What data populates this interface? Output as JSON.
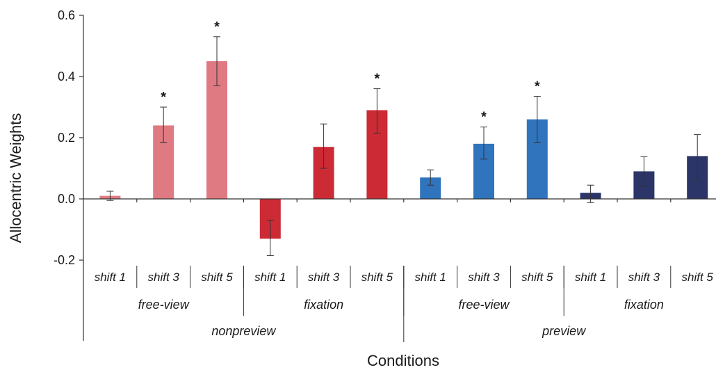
{
  "chart_data": {
    "type": "bar",
    "ylabel": "Allocentric Weights",
    "xlabel": "Conditions",
    "ylim": [
      -0.2,
      0.6
    ],
    "yticks": [
      0.6,
      0.4,
      0.2,
      0.0,
      -0.2
    ],
    "ytick_labels": [
      "0.6",
      "0.4",
      "0.2",
      "0.0",
      "-0.2"
    ],
    "grid": false,
    "legend": "none",
    "colors": {
      "nonpreview_free_view": "#e07a82",
      "nonpreview_fixation": "#cc2b35",
      "preview_free_view": "#2f74bd",
      "preview_fixation": "#2b3568"
    },
    "categories": [
      "shift 1",
      "shift 3",
      "shift 5",
      "shift 1",
      "shift 3",
      "shift 5",
      "shift 1",
      "shift 3",
      "shift 5",
      "shift 1",
      "shift 3",
      "shift 5"
    ],
    "values": [
      0.01,
      0.24,
      0.45,
      -0.13,
      0.17,
      0.29,
      0.07,
      0.18,
      0.26,
      0.02,
      0.09,
      0.14
    ],
    "error_low": [
      -0.005,
      0.185,
      0.37,
      -0.185,
      0.1,
      0.215,
      0.045,
      0.13,
      0.185,
      -0.012,
      0.04,
      0.065
    ],
    "error_high": [
      0.025,
      0.3,
      0.53,
      -0.07,
      0.245,
      0.36,
      0.095,
      0.235,
      0.335,
      0.045,
      0.138,
      0.21
    ],
    "significance": [
      "",
      "*",
      "*",
      "",
      "",
      "*",
      "",
      "*",
      "*",
      "",
      "",
      ""
    ],
    "bar_color_keys": [
      "nonpreview_free_view",
      "nonpreview_free_view",
      "nonpreview_free_view",
      "nonpreview_fixation",
      "nonpreview_fixation",
      "nonpreview_fixation",
      "preview_free_view",
      "preview_free_view",
      "preview_free_view",
      "preview_fixation",
      "preview_fixation",
      "preview_fixation"
    ],
    "subgroups": [
      {
        "label": "free-view",
        "start": 0,
        "end": 2
      },
      {
        "label": "fixation",
        "start": 3,
        "end": 5
      },
      {
        "label": "free-view",
        "start": 6,
        "end": 8
      },
      {
        "label": "fixation",
        "start": 9,
        "end": 11
      }
    ],
    "groups": [
      {
        "label": "nonpreview",
        "start": 0,
        "end": 5
      },
      {
        "label": "preview",
        "start": 6,
        "end": 11
      }
    ]
  }
}
